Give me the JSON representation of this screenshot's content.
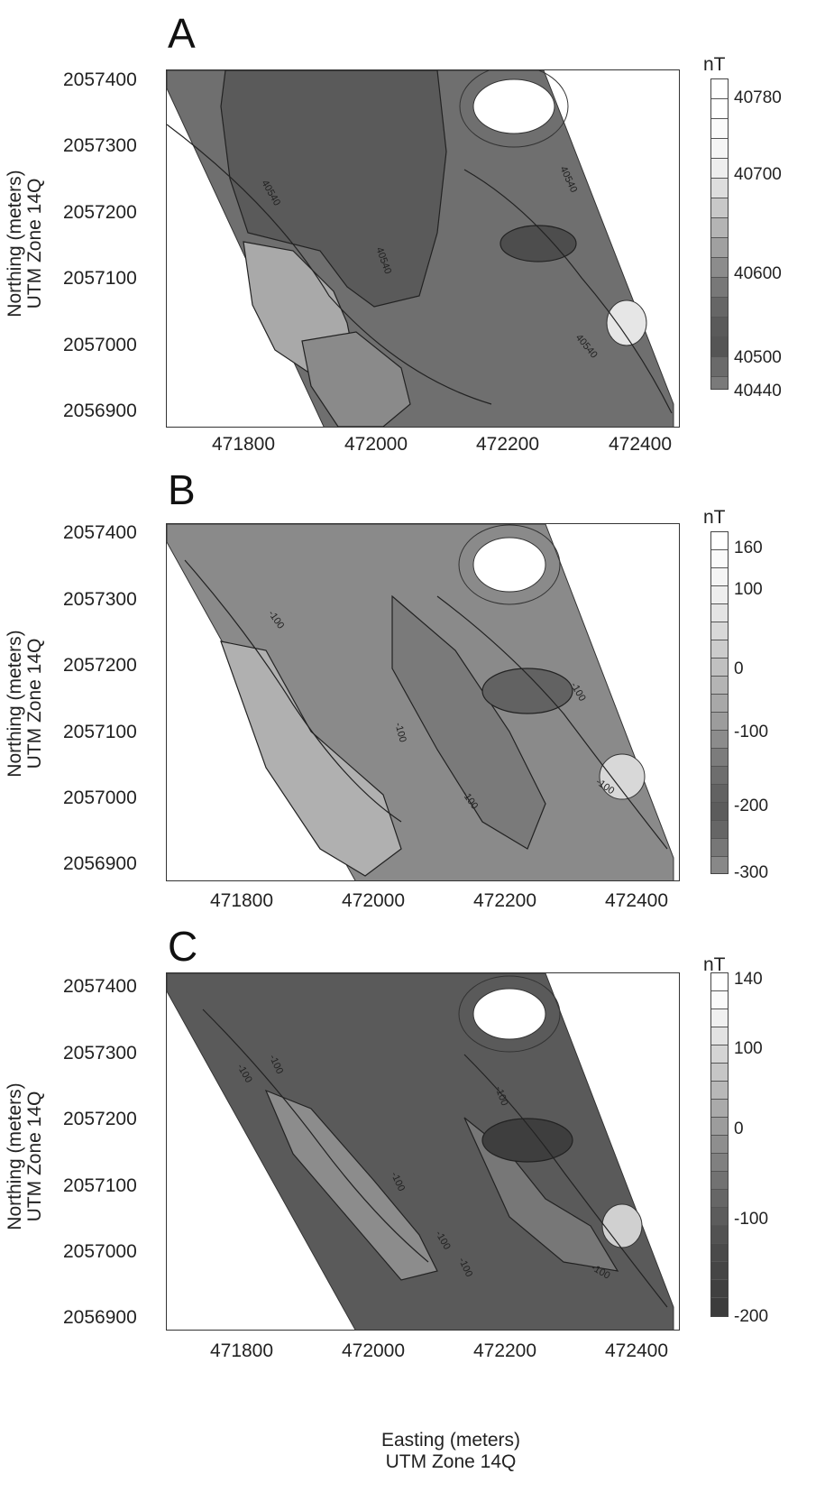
{
  "panels": [
    {
      "letter": "A",
      "ylabel": [
        "Northing (meters)",
        "UTM Zone 14Q"
      ],
      "yticks": [
        "2057400",
        "2057300",
        "2057200",
        "2057100",
        "2057000",
        "2056900"
      ],
      "xticks": [
        "471800",
        "472000",
        "472200",
        "472400"
      ],
      "unit": "nT",
      "colorbar_ticks": [
        "40780",
        "40700",
        "40600",
        "40500",
        "40440"
      ],
      "contour_labels": [
        "40540",
        "40540",
        "40540",
        "40540"
      ],
      "palette": {
        "base": "#6f6f6f",
        "high": "#ffffff",
        "low": "#595959",
        "light": "#a9a9a9"
      }
    },
    {
      "letter": "B",
      "ylabel": [
        "Northing (meters)",
        "UTM Zone 14Q"
      ],
      "yticks": [
        "2057400",
        "2057300",
        "2057200",
        "2057100",
        "2057000",
        "2056900"
      ],
      "xticks": [
        "471800",
        "472000",
        "472200",
        "472400"
      ],
      "unit": "nT",
      "colorbar_ticks": [
        "160",
        "100",
        "0",
        "-100",
        "-200",
        "-300"
      ],
      "contour_labels": [
        "-100",
        "-100",
        "-100",
        "-100",
        "-100"
      ],
      "palette": {
        "base": "#8a8a8a",
        "high": "#ffffff",
        "low": "#6a6a6a",
        "light": "#b0b0b0"
      }
    },
    {
      "letter": "C",
      "ylabel": [
        "Northing (meters)",
        "UTM Zone 14Q"
      ],
      "yticks": [
        "2057400",
        "2057300",
        "2057200",
        "2057100",
        "2057000",
        "2056900"
      ],
      "xticks": [
        "471800",
        "472000",
        "472200",
        "472400"
      ],
      "unit": "nT",
      "colorbar_ticks": [
        "140",
        "100",
        "0",
        "-100",
        "-200"
      ],
      "contour_labels": [
        "-100",
        "-100",
        "-100",
        "-100",
        "-100",
        "-100",
        "-100"
      ],
      "palette": {
        "base": "#5a5a5a",
        "high": "#ffffff",
        "low": "#474747",
        "light": "#8c8c8c"
      }
    }
  ],
  "xlabel": [
    "Easting (meters)",
    "UTM Zone 14Q"
  ]
}
